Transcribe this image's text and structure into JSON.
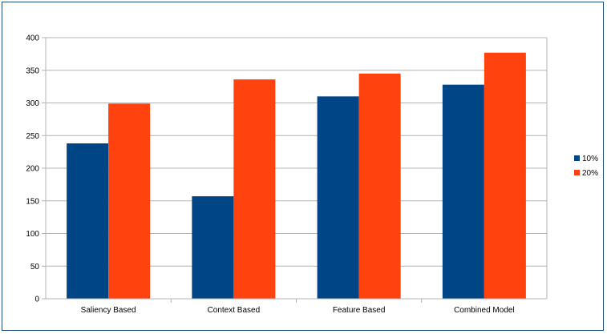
{
  "chart_data": {
    "type": "bar",
    "categories": [
      "Saliency Based",
      "Context Based",
      "Feature Based",
      "Combined Model"
    ],
    "series": [
      {
        "name": "10%",
        "color": "#004586",
        "values": [
          238,
          157,
          310,
          328
        ]
      },
      {
        "name": "20%",
        "color": "#ff420e",
        "values": [
          299,
          336,
          345,
          377
        ]
      }
    ],
    "ylim": [
      0,
      400
    ],
    "yticks": [
      0,
      50,
      100,
      150,
      200,
      250,
      300,
      350,
      400
    ],
    "grid": true,
    "legend": "right"
  }
}
